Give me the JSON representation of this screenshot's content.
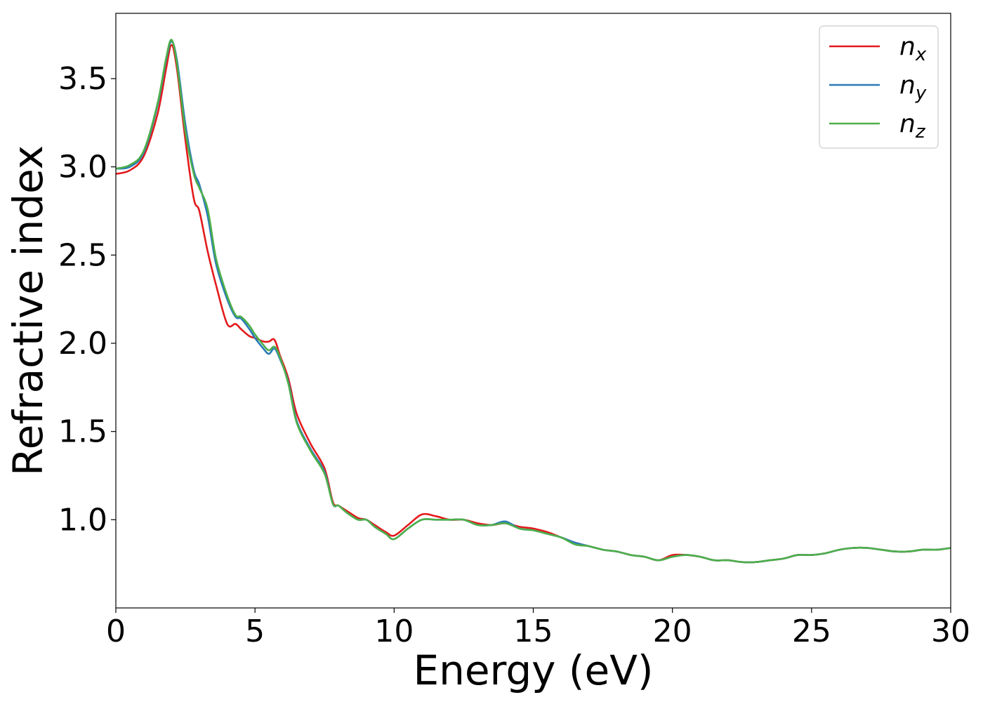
{
  "chart_data": {
    "type": "line",
    "title": "",
    "xlabel": "Energy (eV)",
    "ylabel": "Refractive index",
    "xlim": [
      0,
      30
    ],
    "ylim": [
      0.5,
      3.87
    ],
    "xticks": [
      0,
      5,
      10,
      15,
      20,
      25,
      30
    ],
    "xtick_labels": [
      "0",
      "5",
      "10",
      "15",
      "20",
      "25",
      "30"
    ],
    "yticks": [
      1.0,
      1.5,
      2.0,
      2.5,
      3.0,
      3.5
    ],
    "ytick_labels": [
      "1.0",
      "1.5",
      "2.0",
      "2.5",
      "3.0",
      "3.5"
    ],
    "grid": false,
    "legend_position": "top-right",
    "series": [
      {
        "name": "n",
        "subscript": "x",
        "color": "#e31a1c",
        "x": [
          0,
          0.5,
          1.0,
          1.5,
          1.8,
          2.0,
          2.2,
          2.5,
          2.8,
          3.0,
          3.3,
          3.6,
          4.0,
          4.3,
          4.5,
          4.8,
          5.0,
          5.3,
          5.5,
          5.7,
          5.9,
          6.2,
          6.5,
          7.0,
          7.5,
          7.8,
          8.0,
          8.3,
          8.7,
          9.0,
          9.3,
          9.7,
          10.0,
          10.5,
          11.0,
          11.5,
          12.0,
          12.5,
          13.0,
          13.5,
          14.0,
          14.5,
          15.0,
          15.5,
          16.0,
          16.5,
          17.0,
          17.5,
          18.0,
          18.5,
          19.0,
          19.5,
          20.0,
          20.5,
          21.0,
          21.5,
          22.0,
          22.5,
          23.0,
          23.5,
          24.0,
          24.5,
          25.0,
          25.5,
          26.0,
          26.5,
          27.0,
          27.5,
          28.0,
          28.5,
          29.0,
          29.5,
          30.0
        ],
        "values": [
          2.96,
          2.98,
          3.06,
          3.3,
          3.55,
          3.69,
          3.55,
          3.15,
          2.82,
          2.75,
          2.52,
          2.33,
          2.11,
          2.11,
          2.08,
          2.04,
          2.03,
          2.01,
          2.01,
          2.02,
          1.93,
          1.8,
          1.6,
          1.43,
          1.29,
          1.1,
          1.08,
          1.05,
          1.01,
          1.0,
          0.97,
          0.93,
          0.91,
          0.97,
          1.03,
          1.02,
          1.0,
          1.0,
          0.98,
          0.97,
          0.98,
          0.96,
          0.95,
          0.93,
          0.9,
          0.87,
          0.85,
          0.83,
          0.82,
          0.8,
          0.79,
          0.77,
          0.8,
          0.8,
          0.79,
          0.77,
          0.77,
          0.76,
          0.76,
          0.77,
          0.78,
          0.8,
          0.8,
          0.81,
          0.83,
          0.84,
          0.84,
          0.83,
          0.82,
          0.82,
          0.83,
          0.83,
          0.84
        ]
      },
      {
        "name": "n",
        "subscript": "y",
        "color": "#2b7bb9",
        "x": [
          0,
          0.5,
          1.0,
          1.5,
          1.8,
          2.0,
          2.2,
          2.5,
          2.8,
          3.0,
          3.3,
          3.6,
          4.0,
          4.3,
          4.5,
          4.8,
          5.0,
          5.3,
          5.5,
          5.7,
          5.9,
          6.2,
          6.5,
          7.0,
          7.5,
          7.8,
          8.0,
          8.3,
          8.7,
          9.0,
          9.3,
          9.7,
          10.0,
          10.5,
          11.0,
          11.5,
          12.0,
          12.5,
          13.0,
          13.5,
          14.0,
          14.5,
          15.0,
          15.5,
          16.0,
          16.5,
          17.0,
          17.5,
          18.0,
          18.5,
          19.0,
          19.5,
          20.0,
          20.5,
          21.0,
          21.5,
          22.0,
          22.5,
          23.0,
          23.5,
          24.0,
          24.5,
          25.0,
          25.5,
          26.0,
          26.5,
          27.0,
          27.5,
          28.0,
          28.5,
          29.0,
          29.5,
          30.0
        ],
        "values": [
          2.99,
          3.0,
          3.08,
          3.35,
          3.6,
          3.71,
          3.6,
          3.24,
          2.98,
          2.9,
          2.72,
          2.45,
          2.25,
          2.15,
          2.14,
          2.08,
          2.03,
          1.97,
          1.94,
          1.97,
          1.91,
          1.78,
          1.56,
          1.4,
          1.27,
          1.09,
          1.08,
          1.04,
          1.0,
          1.0,
          0.96,
          0.92,
          0.89,
          0.95,
          1.0,
          1.0,
          1.0,
          1.0,
          0.97,
          0.97,
          0.99,
          0.95,
          0.94,
          0.92,
          0.9,
          0.87,
          0.85,
          0.83,
          0.82,
          0.8,
          0.79,
          0.77,
          0.79,
          0.8,
          0.79,
          0.77,
          0.77,
          0.76,
          0.76,
          0.77,
          0.78,
          0.8,
          0.8,
          0.81,
          0.83,
          0.84,
          0.84,
          0.83,
          0.82,
          0.82,
          0.83,
          0.83,
          0.84
        ]
      },
      {
        "name": "n",
        "subscript": "z",
        "color": "#4daf4a",
        "x": [
          0,
          0.5,
          1.0,
          1.5,
          1.8,
          2.0,
          2.2,
          2.5,
          2.8,
          3.0,
          3.3,
          3.6,
          4.0,
          4.3,
          4.5,
          4.8,
          5.0,
          5.3,
          5.5,
          5.7,
          5.9,
          6.2,
          6.5,
          7.0,
          7.5,
          7.8,
          8.0,
          8.3,
          8.7,
          9.0,
          9.3,
          9.7,
          10.0,
          10.5,
          11.0,
          11.5,
          12.0,
          12.5,
          13.0,
          13.5,
          14.0,
          14.5,
          15.0,
          15.5,
          16.0,
          16.5,
          17.0,
          17.5,
          18.0,
          18.5,
          19.0,
          19.5,
          20.0,
          20.5,
          21.0,
          21.5,
          22.0,
          22.5,
          23.0,
          23.5,
          24.0,
          24.5,
          25.0,
          25.5,
          26.0,
          26.5,
          27.0,
          27.5,
          28.0,
          28.5,
          29.0,
          29.5,
          30.0
        ],
        "values": [
          2.99,
          3.01,
          3.09,
          3.36,
          3.61,
          3.72,
          3.58,
          3.2,
          2.96,
          2.88,
          2.76,
          2.48,
          2.27,
          2.16,
          2.15,
          2.1,
          2.05,
          1.99,
          1.96,
          1.98,
          1.92,
          1.77,
          1.55,
          1.39,
          1.26,
          1.09,
          1.08,
          1.04,
          1.0,
          1.0,
          0.96,
          0.92,
          0.89,
          0.95,
          1.0,
          1.0,
          1.0,
          1.0,
          0.97,
          0.97,
          0.98,
          0.95,
          0.94,
          0.92,
          0.9,
          0.86,
          0.85,
          0.83,
          0.82,
          0.8,
          0.79,
          0.77,
          0.79,
          0.8,
          0.79,
          0.77,
          0.77,
          0.76,
          0.76,
          0.77,
          0.78,
          0.8,
          0.8,
          0.81,
          0.83,
          0.84,
          0.84,
          0.83,
          0.82,
          0.82,
          0.83,
          0.83,
          0.84
        ]
      }
    ]
  }
}
